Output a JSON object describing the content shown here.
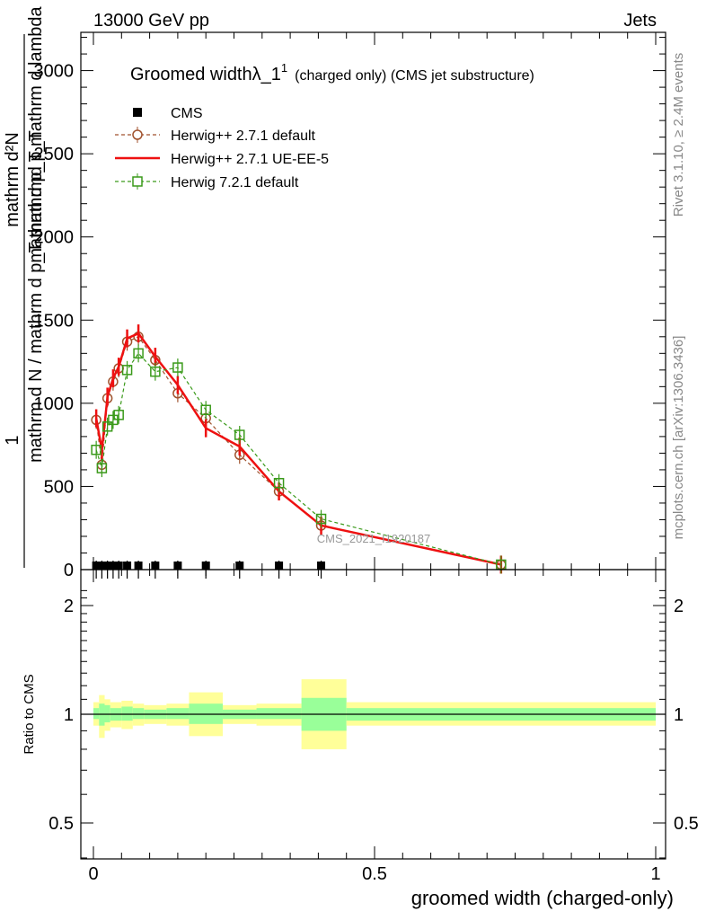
{
  "header": {
    "left": "13000 GeV pp",
    "right": "Jets"
  },
  "side_labels": {
    "rivet": "Rivet 3.1.10, ≥ 2.4M events",
    "mcplots": "mcplots.cern.ch [arXiv:1306.3436]"
  },
  "watermark": "CMS_2021_I1920187",
  "title": {
    "main": "Groomed width",
    "lambda": "λ_1",
    "sup": "1",
    "rest": "(charged only) (CMS jet substructure)"
  },
  "ylabel_main": {
    "frac_one": "1",
    "denominator": "mathrm d N / mathrm d p_T mathrmd p_T",
    "numerator_line1": "mathrm d²N",
    "numerator_line2": "mathrm d p_T mathrm d lambda"
  },
  "ylabel_ratio": "Ratio to CMS",
  "xlabel": "groomed width (charged-only)",
  "colors": {
    "cms": "#000000",
    "herwigpp_default": "#a0522d",
    "herwigpp_ueee5": "#ee1111",
    "herwig7": "#3a9a1a",
    "band_inner": "#99ff99",
    "band_outer": "#ffff99"
  },
  "chart_data": [
    {
      "type": "line",
      "panel": "main",
      "xlim": [
        0,
        1
      ],
      "ylim": [
        0,
        3230
      ],
      "x_ticks": [
        0,
        0.5,
        1
      ],
      "y_ticks": [
        0,
        500,
        1000,
        1500,
        2000,
        2500,
        3000
      ],
      "x_tick_labels": [
        "0",
        "0.5",
        "1"
      ],
      "y_tick_labels": [
        "0",
        "500",
        "1000",
        "1500",
        "2000",
        "2500",
        "3000"
      ],
      "legend_position": "top-left",
      "series": [
        {
          "name": "CMS",
          "marker": "square-filled",
          "x": [
            0.005,
            0.015,
            0.025,
            0.035,
            0.045,
            0.06,
            0.08,
            0.11,
            0.15,
            0.2,
            0.26,
            0.33,
            0.405
          ],
          "y": [
            0,
            0,
            0,
            0,
            0,
            0,
            0,
            0,
            0,
            0,
            0,
            0,
            0
          ]
        },
        {
          "name": "Herwig++ 2.7.1 default",
          "marker": "circle-open",
          "line": "dashed",
          "x": [
            0.005,
            0.015,
            0.025,
            0.035,
            0.045,
            0.06,
            0.08,
            0.11,
            0.15,
            0.2,
            0.26,
            0.33,
            0.405,
            0.725
          ],
          "y": [
            900,
            630,
            1030,
            1130,
            1210,
            1370,
            1400,
            1260,
            1060,
            910,
            690,
            470,
            265,
            30
          ]
        },
        {
          "name": "Herwig++ 2.7.1 UE-EE-5",
          "marker": "none",
          "line": "solid",
          "x": [
            0.005,
            0.015,
            0.025,
            0.035,
            0.045,
            0.06,
            0.08,
            0.11,
            0.15,
            0.2,
            0.26,
            0.33,
            0.405,
            0.725
          ],
          "y": [
            910,
            720,
            1040,
            1150,
            1220,
            1390,
            1420,
            1280,
            1110,
            850,
            740,
            470,
            265,
            30
          ]
        },
        {
          "name": "Herwig 7.2.1 default",
          "marker": "square-open",
          "line": "dashed",
          "x": [
            0.005,
            0.015,
            0.025,
            0.035,
            0.045,
            0.06,
            0.08,
            0.11,
            0.15,
            0.2,
            0.26,
            0.33,
            0.405,
            0.725
          ],
          "y": [
            720,
            610,
            860,
            900,
            930,
            1200,
            1300,
            1190,
            1215,
            960,
            810,
            520,
            305,
            30
          ]
        }
      ]
    },
    {
      "type": "area",
      "panel": "ratio",
      "xlim": [
        0,
        1
      ],
      "ylim": [
        0.4,
        2.25
      ],
      "y_scale": "log",
      "y_ticks": [
        0.5,
        1,
        2
      ],
      "y_tick_labels": [
        "0.5",
        "1",
        "2"
      ],
      "x_ticks": [
        0,
        0.5,
        1
      ],
      "x_tick_labels": [
        "0",
        "0.5",
        "1"
      ],
      "bins": [
        {
          "x0": 0.0,
          "x1": 0.01,
          "outer": [
            0.93,
            1.08
          ],
          "inner": [
            0.97,
            1.04
          ]
        },
        {
          "x0": 0.01,
          "x1": 0.02,
          "outer": [
            0.86,
            1.13
          ],
          "inner": [
            0.93,
            1.07
          ]
        },
        {
          "x0": 0.02,
          "x1": 0.03,
          "outer": [
            0.9,
            1.1
          ],
          "inner": [
            0.95,
            1.06
          ]
        },
        {
          "x0": 0.03,
          "x1": 0.05,
          "outer": [
            0.92,
            1.08
          ],
          "inner": [
            0.96,
            1.04
          ]
        },
        {
          "x0": 0.05,
          "x1": 0.07,
          "outer": [
            0.91,
            1.09
          ],
          "inner": [
            0.96,
            1.05
          ]
        },
        {
          "x0": 0.07,
          "x1": 0.09,
          "outer": [
            0.93,
            1.07
          ],
          "inner": [
            0.97,
            1.04
          ]
        },
        {
          "x0": 0.09,
          "x1": 0.13,
          "outer": [
            0.94,
            1.06
          ],
          "inner": [
            0.97,
            1.03
          ]
        },
        {
          "x0": 0.13,
          "x1": 0.17,
          "outer": [
            0.93,
            1.07
          ],
          "inner": [
            0.97,
            1.04
          ]
        },
        {
          "x0": 0.17,
          "x1": 0.23,
          "outer": [
            0.87,
            1.15
          ],
          "inner": [
            0.94,
            1.07
          ]
        },
        {
          "x0": 0.23,
          "x1": 0.29,
          "outer": [
            0.94,
            1.06
          ],
          "inner": [
            0.97,
            1.03
          ]
        },
        {
          "x0": 0.29,
          "x1": 0.37,
          "outer": [
            0.93,
            1.07
          ],
          "inner": [
            0.97,
            1.04
          ]
        },
        {
          "x0": 0.37,
          "x1": 0.45,
          "outer": [
            0.8,
            1.25
          ],
          "inner": [
            0.9,
            1.11
          ]
        },
        {
          "x0": 0.45,
          "x1": 1.0,
          "outer": [
            0.93,
            1.08
          ],
          "inner": [
            0.96,
            1.04
          ]
        }
      ]
    }
  ]
}
